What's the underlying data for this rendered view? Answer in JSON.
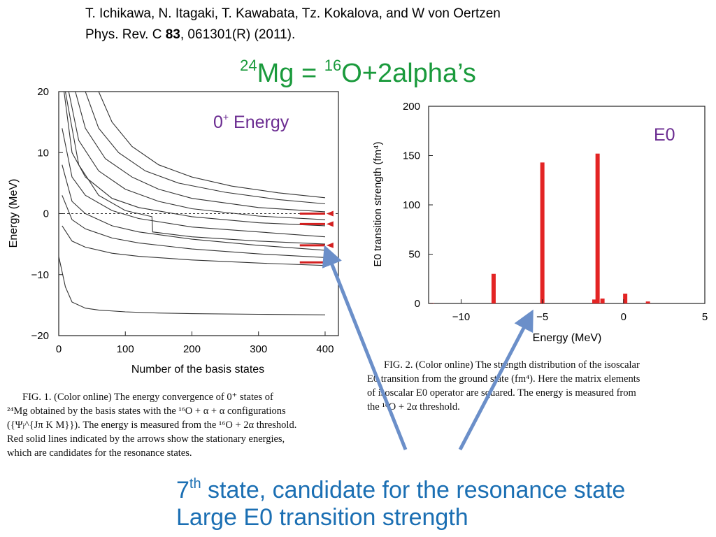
{
  "reference": {
    "authors": "T. Ichikawa, N. Itagaki, T. Kawabata, Tz. Kokalova, and W von Oertzen",
    "journal_prefix": "Phys. Rev. C ",
    "volume": "83",
    "journal_suffix": ", 061301(R) (2011)."
  },
  "title": {
    "sup1": "24",
    "part1": "Mg = ",
    "sup2": "16",
    "part2": "O+2alpha’s"
  },
  "fig1": {
    "panel_label_base": "0",
    "panel_label_sup": "+",
    "panel_label_rest": " Energy",
    "caption_line1": "FIG. 1. (Color online) The energy convergence of 0⁺ states of",
    "caption_line2": "²⁴Mg obtained by the basis states with the ¹⁶O + α + α configurations",
    "caption_line3": "({Ψⱼ^{Jπ K M}}). The energy is measured from the ¹⁶O + 2α threshold.",
    "caption_line4": "Red solid lines indicated by the arrows show the stationary energies,",
    "caption_line5": "which are candidates for the resonance states."
  },
  "fig2": {
    "panel_label": "E0",
    "caption_line1": "FIG. 2. (Color online) The strength distribution of the isoscalar",
    "caption_line2": "E0 transition from the ground state (fm⁴). Here the matrix elements",
    "caption_line3": "of isoscalar E0 operator are squared. The energy is measured from",
    "caption_line4": "the ¹⁶O + 2α threshold."
  },
  "chart_data": [
    {
      "type": "line",
      "xlabel": "Number of the basis states",
      "ylabel": "Energy (MeV)",
      "xlim": [
        0,
        420
      ],
      "ylim": [
        -20,
        20
      ],
      "xticks": [
        "0",
        "100",
        "200",
        "300",
        "400"
      ],
      "yticks": [
        "20",
        "10",
        "0",
        "−10",
        "−20"
      ],
      "series": [
        {
          "x": [
            0,
            10,
            20,
            40,
            60,
            100,
            150,
            200,
            300,
            400
          ],
          "y": [
            -7,
            -12,
            -14.5,
            -15.5,
            -15.8,
            -16.1,
            -16.3,
            -16.4,
            -16.5,
            -16.6
          ]
        },
        {
          "x": [
            5,
            20,
            40,
            80,
            120,
            200,
            300,
            400
          ],
          "y": [
            -2,
            -4.5,
            -5.5,
            -6.5,
            -7,
            -7.6,
            -8.1,
            -8.5
          ]
        },
        {
          "x": [
            5,
            20,
            40,
            80,
            120,
            200,
            300,
            400
          ],
          "y": [
            3,
            -1,
            -2.5,
            -4,
            -4.8,
            -5.8,
            -6.6,
            -7.2
          ]
        },
        {
          "x": [
            5,
            20,
            40,
            80,
            120,
            200,
            300,
            400
          ],
          "y": [
            8,
            2,
            0,
            -2,
            -3,
            -4.2,
            -5.2,
            -6
          ]
        },
        {
          "x": [
            5,
            20,
            40,
            80,
            120,
            200,
            300,
            400
          ],
          "y": [
            14,
            6,
            3,
            0.5,
            -0.8,
            -2.2,
            -3,
            -3.8
          ]
        },
        {
          "x": [
            8,
            20,
            40,
            80,
            120,
            200,
            300,
            400
          ],
          "y": [
            20,
            10,
            6,
            2.5,
            1,
            -0.5,
            -1.5,
            -2
          ]
        },
        {
          "x": [
            15,
            30,
            60,
            100,
            150,
            200,
            300,
            400
          ],
          "y": [
            20,
            12,
            7,
            4,
            2,
            0.8,
            -0.4,
            -1
          ]
        },
        {
          "x": [
            25,
            40,
            70,
            110,
            150,
            200,
            300,
            400
          ],
          "y": [
            20,
            14,
            9,
            6,
            4,
            2.5,
            1,
            0.3
          ]
        },
        {
          "x": [
            40,
            60,
            90,
            130,
            180,
            250,
            330,
            400
          ],
          "y": [
            20,
            14,
            10,
            7,
            5,
            3.5,
            2.3,
            1.6
          ]
        },
        {
          "x": [
            60,
            80,
            110,
            150,
            200,
            260,
            330,
            400
          ],
          "y": [
            20,
            15,
            11,
            8,
            6,
            4.5,
            3.4,
            2.6
          ]
        },
        {
          "x": [
            10,
            30,
            60,
            100,
            140,
            141,
            200,
            300,
            400
          ],
          "y": [
            20,
            8,
            3,
            0.5,
            -0.5,
            -3,
            -3.8,
            -4.5,
            -5
          ]
        }
      ],
      "resonance_energies": [
        0,
        -1.7,
        -5.2,
        -8
      ]
    },
    {
      "type": "bar",
      "xlabel": "Energy (MeV)",
      "ylabel": "E0 transition strength (fm⁴)",
      "xlim": [
        -12,
        5
      ],
      "ylim": [
        0,
        200
      ],
      "xticks": [
        "−10",
        "−5",
        "0",
        "5"
      ],
      "yticks": [
        "200",
        "150",
        "100",
        "50",
        "0"
      ],
      "x": [
        -11.8,
        -8,
        -5,
        -1.8,
        -1.6,
        -1.3,
        0.1,
        1.5
      ],
      "values": [
        0.5,
        30,
        143,
        4,
        152,
        5,
        10,
        2
      ]
    }
  ],
  "annotation": {
    "line1_num": "7",
    "line1_sup": "th",
    "line1_rest": " state, candidate for the resonance state",
    "line2": "Large E0 transition strength"
  }
}
